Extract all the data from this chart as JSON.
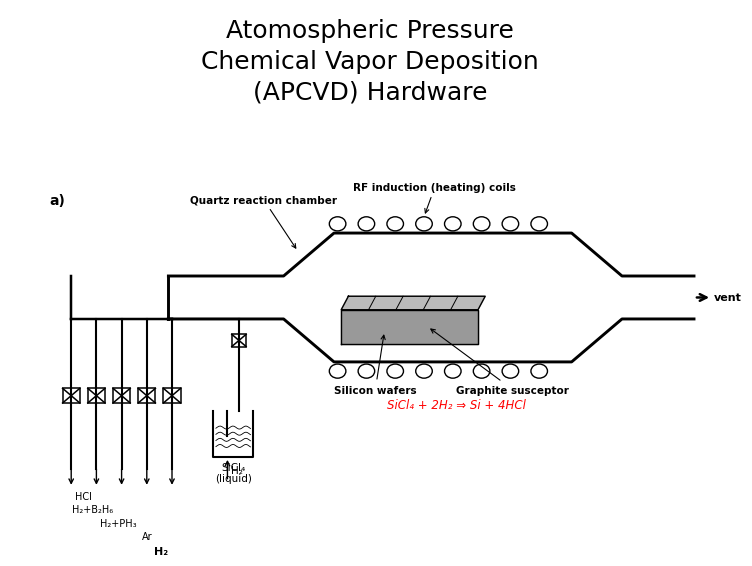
{
  "title": "Atomospheric Pressure\nChemical Vapor Deposition\n(APCVD) Hardware",
  "title_fontsize": 18,
  "title_color": "#000000",
  "bg_color": "#ffffff",
  "label_a": "a)",
  "label_rf": "RF induction (heating) coils",
  "label_quartz": "Quartz reaction chamber",
  "label_vent": "vent",
  "label_silicon": "Silicon wafers",
  "label_graphite": "Graphite susceptor",
  "label_sicl4": "SiCl₄\n(liquid)",
  "label_h2_bubbler": "H₂",
  "label_hcl": "HCl",
  "label_h2b2h6": "H₂+B₂H₆",
  "label_h2ph3": "H₂+PH₃",
  "label_ar": "Ar",
  "label_h2_bottom": "H₂",
  "equation": "SiCl₄ + 2H₂ ⇒ Si + 4HCl",
  "eq_color": "#ff0000",
  "lw": 1.5
}
